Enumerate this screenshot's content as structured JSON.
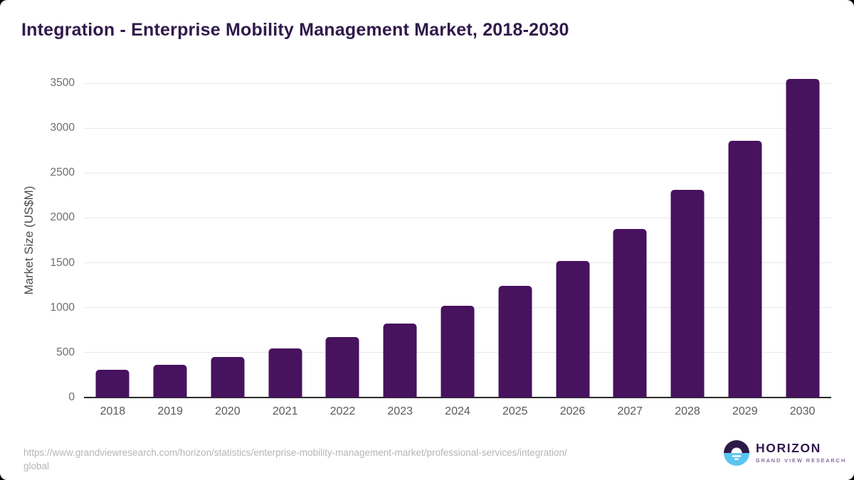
{
  "title": {
    "text": "Integration - Enterprise Mobility Management Market, 2018-2030"
  },
  "chart_data": {
    "type": "bar",
    "title": "Integration - Enterprise Mobility Management Market, 2018-2030",
    "categories": [
      "2018",
      "2019",
      "2020",
      "2021",
      "2022",
      "2023",
      "2024",
      "2025",
      "2026",
      "2027",
      "2028",
      "2029",
      "2030"
    ],
    "values": [
      310,
      365,
      455,
      550,
      675,
      825,
      1020,
      1240,
      1520,
      1875,
      2310,
      2855,
      3545
    ],
    "xlabel": "",
    "ylabel": "Market Size (US$M)",
    "ylim": [
      0,
      3500
    ],
    "yticks": [
      0,
      500,
      1000,
      1500,
      2000,
      2500,
      3000,
      3500
    ],
    "grid": true,
    "legend_position": "none",
    "bar_color": "#47125e",
    "background": "#ffffff"
  },
  "footer": {
    "source_url_lines": [
      "https://www.grandviewresearch.com/horizon/statistics/enterprise-mobility-management-market/professional-services/integration/",
      "global"
    ],
    "logo": {
      "brand": "HORIZON",
      "sub_brand": "GRAND VIEW RESEARCH",
      "mark_colors": {
        "top": "#2e1a47",
        "bottom": "#5bc5f2",
        "sun": "#ffffff"
      }
    }
  },
  "colors": {
    "bar": "#47125e",
    "title_text": "#301a4a",
    "axis_line": "#2b2b2b",
    "gridline": "#e8e8e8",
    "y_tick_label": "#6e6e6e",
    "x_tick_label": "#595959",
    "url_text": "#b5b5b5"
  }
}
